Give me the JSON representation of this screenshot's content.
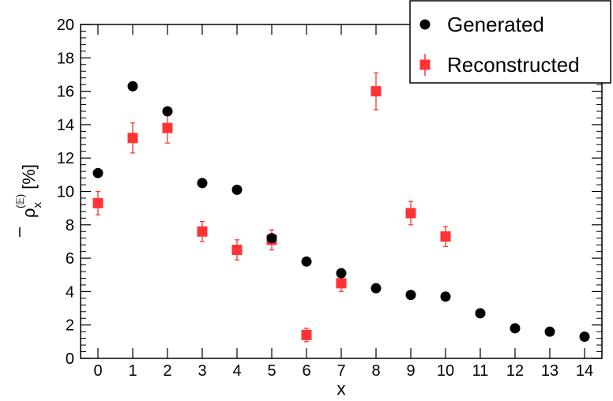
{
  "chart_data": {
    "type": "scatter",
    "xlabel": "x",
    "ylabel_main": "ρ",
    "ylabel_sub": "x",
    "ylabel_sup": "(𝔼)",
    "ylabel_unit": "[%]",
    "xlim": [
      -0.5,
      14.5
    ],
    "ylim": [
      0,
      20
    ],
    "x_ticks": [
      0,
      1,
      2,
      3,
      4,
      5,
      6,
      7,
      8,
      9,
      10,
      11,
      12,
      13,
      14
    ],
    "y_ticks": [
      0,
      2,
      4,
      6,
      8,
      10,
      12,
      14,
      16,
      18,
      20
    ],
    "grid": false,
    "legend_position": "top-right",
    "series": [
      {
        "name": "Generated",
        "marker": "circle",
        "color": "#000000",
        "x": [
          0,
          1,
          2,
          3,
          4,
          5,
          6,
          7,
          8,
          9,
          10,
          11,
          12,
          13,
          14
        ],
        "y": [
          11.1,
          16.3,
          14.8,
          10.5,
          10.1,
          7.2,
          5.8,
          5.1,
          4.2,
          3.8,
          3.7,
          2.7,
          1.8,
          1.6,
          1.3
        ]
      },
      {
        "name": "Reconstructed",
        "marker": "square",
        "color": "#ff3333",
        "x": [
          0,
          1,
          2,
          3,
          4,
          5,
          6,
          7,
          8,
          9,
          10
        ],
        "y": [
          9.3,
          13.2,
          13.8,
          7.6,
          6.5,
          7.1,
          1.4,
          4.5,
          16.0,
          8.7,
          7.3
        ],
        "err": [
          0.7,
          0.9,
          0.9,
          0.6,
          0.6,
          0.6,
          0.4,
          0.5,
          1.1,
          0.7,
          0.6
        ]
      }
    ]
  }
}
